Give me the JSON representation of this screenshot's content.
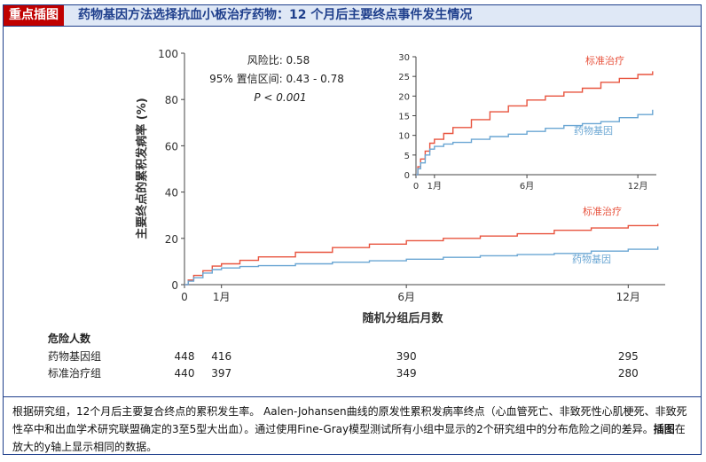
{
  "header": {
    "tag": "重点插图",
    "title": "药物基因方法选择抗血小板治疗药物：12 个月后主要终点事件发生情况"
  },
  "stats": {
    "hr": "风险比: 0.58",
    "ci": "95% 置信区间: 0.43 - 0.78",
    "p": "P < 0.001"
  },
  "colors": {
    "standard": "#e8543f",
    "genotype": "#6aa6d3",
    "frame": "#1f3f8c",
    "tag_bg": "#c00000",
    "title_bg": "#dfe8f6"
  },
  "chart_data": [
    {
      "type": "line",
      "panel": "main",
      "xlabel": "随机分组后月数",
      "ylabel": "主要终点的累积发病率 (%)",
      "xlim": [
        0,
        13
      ],
      "ylim": [
        0,
        100
      ],
      "x_ticks": [
        0,
        1,
        6,
        12
      ],
      "x_tick_labels": [
        "0",
        "1月",
        "6月",
        "12月"
      ],
      "y_ticks": [
        0,
        20,
        40,
        60,
        80,
        100
      ],
      "grid": false,
      "series": [
        {
          "name": "标准治疗",
          "color": "#e8543f",
          "x": [
            0,
            0.1,
            0.25,
            0.5,
            0.75,
            1,
            1.5,
            2,
            3,
            4,
            5,
            6,
            7,
            8,
            9,
            10,
            11,
            12,
            12.8
          ],
          "y": [
            0,
            2,
            4,
            6,
            8,
            9,
            10.5,
            12,
            14,
            16,
            17.5,
            19,
            20,
            21,
            22,
            23.5,
            24.5,
            25.5,
            26.3
          ]
        },
        {
          "name": "药物基因",
          "color": "#6aa6d3",
          "x": [
            0,
            0.1,
            0.25,
            0.5,
            0.75,
            1,
            1.5,
            2,
            3,
            4,
            5,
            6,
            7,
            8,
            9,
            10,
            11,
            12,
            12.8
          ],
          "y": [
            0,
            1.5,
            3,
            5,
            6.5,
            7.2,
            7.8,
            8.2,
            9,
            9.7,
            10.3,
            11,
            11.8,
            12.5,
            13,
            13.5,
            14.5,
            15.3,
            16.5
          ]
        }
      ]
    },
    {
      "type": "line",
      "panel": "inset",
      "xlim": [
        0,
        13
      ],
      "ylim": [
        0,
        30
      ],
      "x_ticks": [
        0,
        1,
        6,
        12
      ],
      "x_tick_labels": [
        "0",
        "1月",
        "6月",
        "12月"
      ],
      "y_ticks": [
        0,
        5,
        10,
        15,
        20,
        25,
        30
      ],
      "grid": false,
      "series": [
        {
          "name": "标准治疗",
          "color": "#e8543f",
          "x": [
            0,
            0.1,
            0.25,
            0.5,
            0.75,
            1,
            1.5,
            2,
            3,
            4,
            5,
            6,
            7,
            8,
            9,
            10,
            11,
            12,
            12.8
          ],
          "y": [
            0,
            2,
            4,
            6,
            8,
            9,
            10.5,
            12,
            14,
            16,
            17.5,
            19,
            20,
            21,
            22,
            23.5,
            24.5,
            25.5,
            26.3
          ]
        },
        {
          "name": "药物基因",
          "color": "#6aa6d3",
          "x": [
            0,
            0.1,
            0.25,
            0.5,
            0.75,
            1,
            1.5,
            2,
            3,
            4,
            5,
            6,
            7,
            8,
            9,
            10,
            11,
            12,
            12.8
          ],
          "y": [
            0,
            1.5,
            3,
            5,
            6.5,
            7.2,
            7.8,
            8.2,
            9,
            9.7,
            10.3,
            11,
            11.8,
            12.5,
            13,
            13.5,
            14.5,
            15.3,
            16.5
          ]
        }
      ]
    }
  ],
  "risk": {
    "title": "危险人数",
    "rows": [
      {
        "label": "药物基因组",
        "values": [
          "448",
          "416",
          "390",
          "295"
        ]
      },
      {
        "label": "标准治疗组",
        "values": [
          "440",
          "397",
          "349",
          "280"
        ]
      }
    ]
  },
  "caption": {
    "text1": "根据研究组，12个月后主要复合终点的累积发生率。 Aalen-Johansen曲线的原发性累积发病率终点（心血管死亡、非致死性心肌梗死、非致死性卒中和出血学术研究联盟确定的3至5型大出血）。通过使用Fine-Gray模型测试所有小组中显示的2个研究组中的分布危险之间的差异。",
    "bold": "插图",
    "text2": "在放大的y轴上显示相同的数据。"
  }
}
